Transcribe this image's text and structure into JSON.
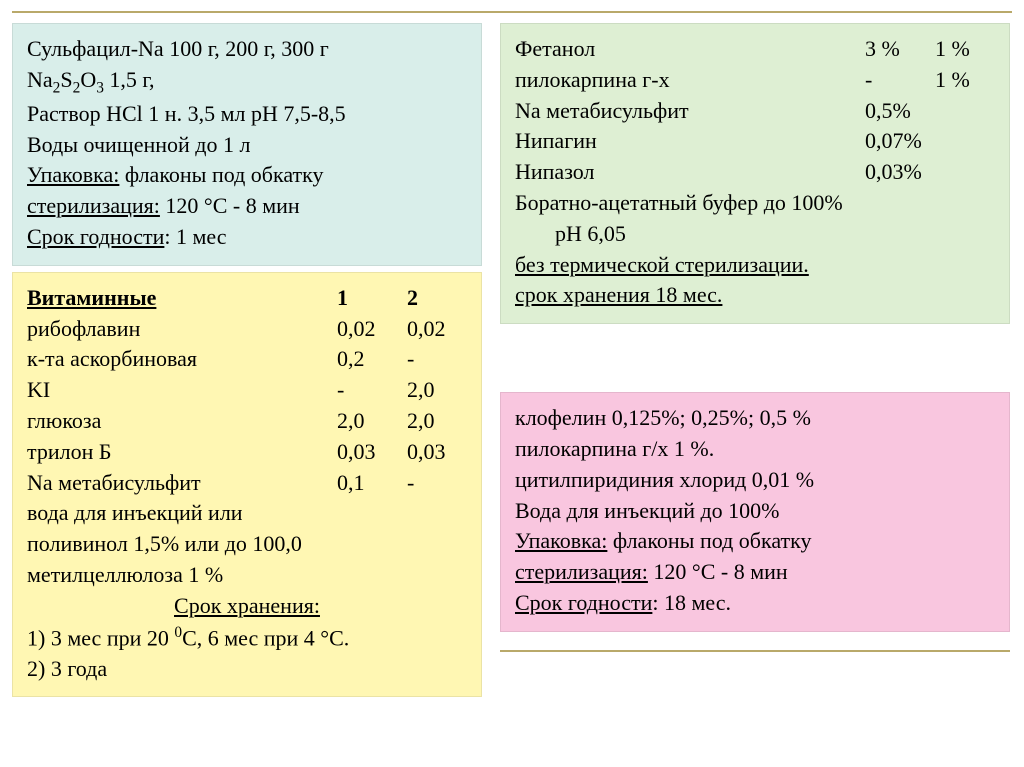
{
  "blue": {
    "l1": "Сульфацил-Na   100 г,  200 г,  300 г",
    "l2_html": "Na<sub>2</sub>S<sub>2</sub>O<sub>3</sub>                          1,5 г,",
    "l3": "Раствор HCl 1 н.   3,5 мл  pH 7,5-8,5",
    "l4": "Воды очищенной             до 1 л",
    "l5a": "Упаковка:",
    "l5b": " флаконы под обкатку",
    "l6a": "стерилизация:",
    "l6b": "  120 °С - 8  мин",
    "l7a": "Срок годности",
    "l7b": ": 1 мес"
  },
  "yellow": {
    "hdr_label": "Витаминные",
    "hdr_c1": "1",
    "hdr_c2": "2",
    "rows": [
      {
        "n": "рибофлавин",
        "a": "0,02",
        "b": "0,02"
      },
      {
        "n": "к-та аскорбиновая",
        "a": "0,2",
        "b": "-"
      },
      {
        "n": "KI",
        "a": "-",
        "b": "2,0"
      },
      {
        "n": "глюкоза",
        "a": "2,0",
        "b": "2,0"
      },
      {
        "n": "трилон Б",
        "a": "0,03",
        "b": "0,03"
      },
      {
        "n": "Na метабисульфит",
        "a": "0,1",
        "b": "-"
      }
    ],
    "tail1": "вода для инъекций или",
    "tail2": "поливинол 1,5%  или       до 100,0",
    "tail3": "метилцеллюлоза 1 %",
    "store_hdr": "Срок хранения:",
    "store1_html": "1) 3 мес при 20 <sup>0</sup>С,  6 мес при 4 °С.",
    "store2": "2) 3 года"
  },
  "green": {
    "r1": {
      "n": "Фетанол",
      "a": "3 %",
      "b": "1 %"
    },
    "r2": {
      "n": "пилокарпина г-х",
      "a": "-",
      "b": "1 %"
    },
    "r3": {
      "n": "Na метабисульфит",
      "a": "0,5%"
    },
    "r4": {
      "n": "Нипагин",
      "a": "0,07%"
    },
    "r5": {
      "n": "Нипазол",
      "a": "0,03%"
    },
    "buf": "Боратно-ацетатный буфер  до 100%",
    "ph": "pH 6,05",
    "nost": "без термической стерилизации.",
    "store": "срок хранения 18 мес."
  },
  "pink": {
    "l1": "клофелин    0,125%; 0,25%; 0,5 %",
    "l2": "пилокарпина г/х                  1 %.",
    "l3": "цитилпиридиния хлорид 0,01 %",
    "l4": "Вода для инъекций  до 100%",
    "l5a": "Упаковка:",
    "l5b": " флаконы под обкатку",
    "l6a": "стерилизация:",
    "l6b": "  120 °С - 8  мин",
    "l7a": "Срок годности",
    "l7b": ": 18 мес."
  }
}
